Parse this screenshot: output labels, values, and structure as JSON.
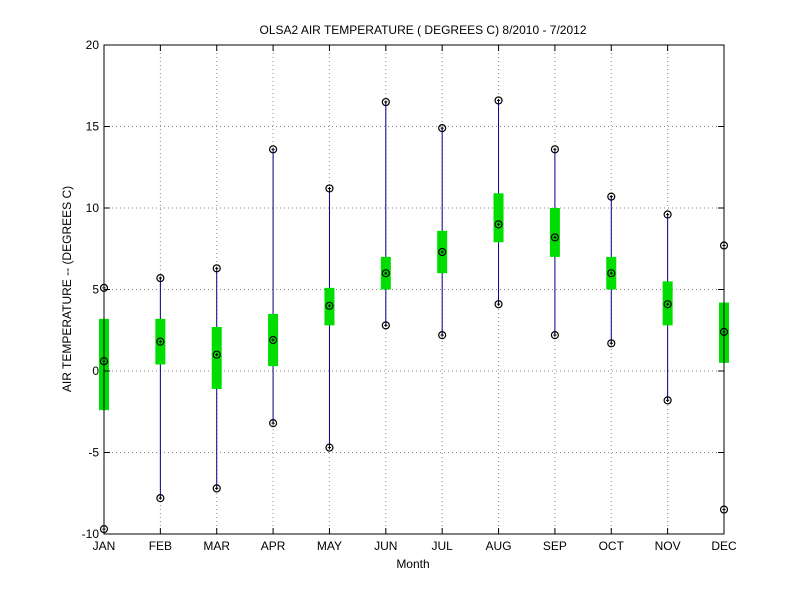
{
  "chart_data": {
    "type": "box",
    "title": "OLSA2  AIR TEMPERATURE ( DEGREES C) 8/2010 - 7/2012",
    "xlabel": "Month",
    "ylabel": "AIR TEMPERATURE -- (DEGREES C)",
    "ylim": [
      -10,
      20
    ],
    "yticks": [
      -10,
      -5,
      0,
      5,
      10,
      15,
      20
    ],
    "grid": true,
    "categories": [
      "JAN",
      "FEB",
      "MAR",
      "APR",
      "MAY",
      "JUN",
      "JUL",
      "AUG",
      "SEP",
      "OCT",
      "NOV",
      "DEC"
    ],
    "min": [
      -9.7,
      -7.8,
      -7.2,
      -3.2,
      -4.7,
      2.8,
      2.2,
      4.1,
      2.2,
      1.7,
      -1.8,
      -8.5
    ],
    "q1": [
      -2.4,
      0.4,
      -1.1,
      0.3,
      2.8,
      5.0,
      6.0,
      7.9,
      7.0,
      5.0,
      2.8,
      0.5
    ],
    "median": [
      0.6,
      1.8,
      1.0,
      1.9,
      4.0,
      6.0,
      7.3,
      9.0,
      8.2,
      6.0,
      4.1,
      2.4
    ],
    "q3": [
      3.2,
      3.2,
      2.7,
      3.5,
      5.1,
      7.0,
      8.6,
      10.9,
      10.0,
      7.0,
      5.5,
      4.2
    ],
    "max": [
      5.1,
      5.7,
      6.3,
      13.6,
      11.2,
      16.5,
      14.9,
      16.6,
      13.6,
      10.7,
      9.6,
      7.7
    ],
    "colors": {
      "whisker": "#00008b",
      "box": "#00dd00",
      "marker": "#000000",
      "grid": "#888888"
    }
  }
}
